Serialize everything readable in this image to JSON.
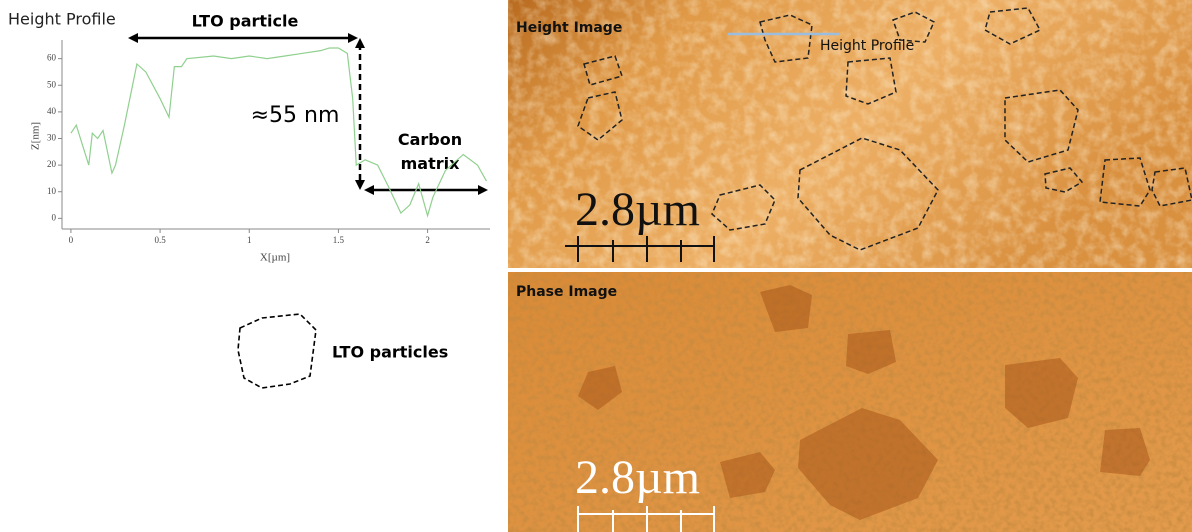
{
  "chart_data": {
    "type": "line",
    "title": "Height Profile",
    "x_label": "X[µm]",
    "y_label": "Z[nm]",
    "x": [
      0,
      0.03,
      0.1,
      0.12,
      0.15,
      0.18,
      0.23,
      0.25,
      0.3,
      0.37,
      0.42,
      0.5,
      0.55,
      0.58,
      0.62,
      0.65,
      0.8,
      0.9,
      1.0,
      1.1,
      1.2,
      1.3,
      1.4,
      1.45,
      1.5,
      1.55,
      1.58,
      1.6,
      1.65,
      1.72,
      1.78,
      1.85,
      1.9,
      1.95,
      2.0,
      2.03,
      2.1,
      2.2,
      2.28,
      2.33
    ],
    "values": [
      32,
      35,
      20,
      32,
      30,
      33,
      17,
      20,
      35,
      58,
      55,
      45,
      38,
      57,
      57,
      60,
      61,
      60,
      61,
      60,
      61,
      62,
      63,
      64,
      64,
      62,
      45,
      20,
      22,
      20,
      12,
      2,
      5,
      13,
      1,
      8,
      18,
      24,
      20,
      14
    ],
    "color": "#8fd08f",
    "xlim": [
      -0.05,
      2.35
    ],
    "ylim": [
      -4,
      67
    ],
    "xticks": [
      0,
      0.5,
      1,
      1.5,
      2
    ],
    "yticks": [
      0,
      10,
      20,
      30,
      40,
      50,
      60
    ],
    "annotations": [
      "LTO particle",
      "≈55 nm",
      "Carbon matrix"
    ]
  },
  "images": [
    {
      "title": "Height Image",
      "profile_label": "Height Profile",
      "scale_bar": "2.8µm"
    },
    {
      "title": "Phase Image",
      "scale_bar": "2.8µm"
    }
  ],
  "legend": {
    "label": "LTO particles"
  }
}
